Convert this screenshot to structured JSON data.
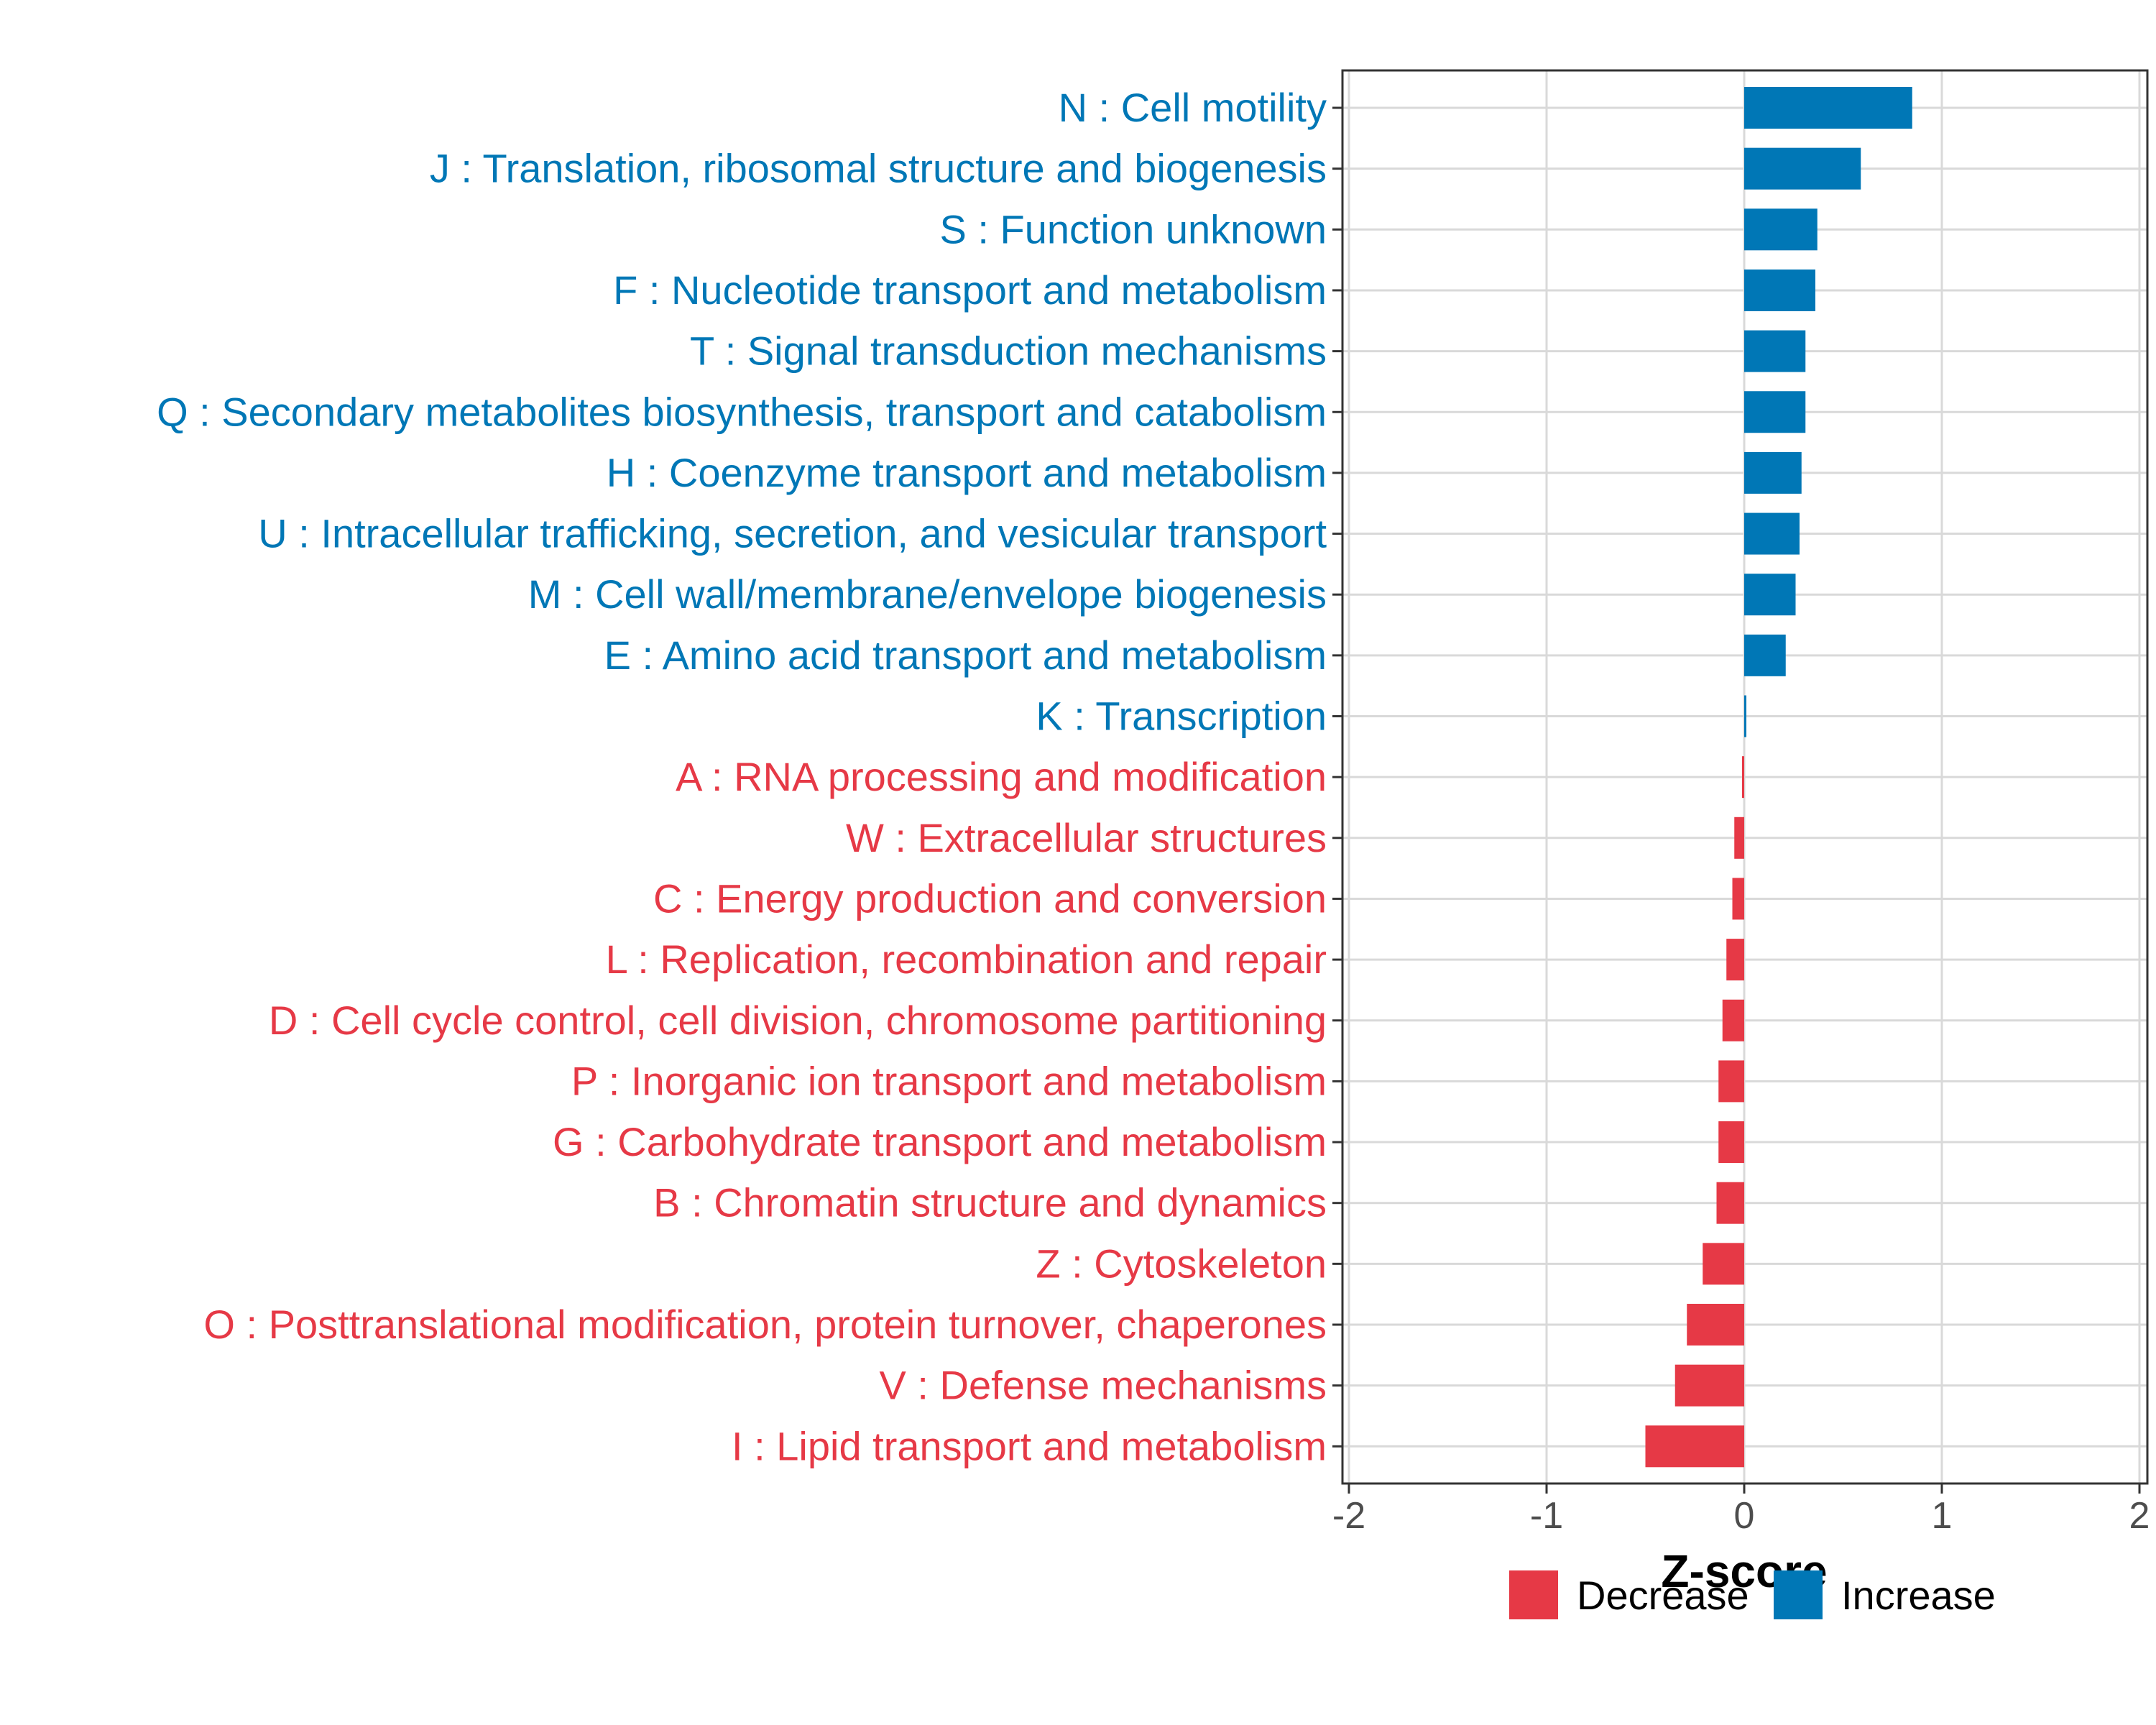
{
  "chart_data": {
    "type": "bar",
    "orientation": "horizontal",
    "xlabel": "Z-score",
    "xlim": [
      -2,
      2
    ],
    "xticks": [
      -2,
      -1,
      0,
      1,
      2
    ],
    "xtick_labels": [
      "-2",
      "-1",
      "0",
      "1",
      "2"
    ],
    "grid": true,
    "legend_position": "bottom",
    "legend": [
      {
        "name": "Decrease",
        "color": "#E63946"
      },
      {
        "name": "Increase",
        "color": "#0077B6"
      }
    ],
    "categories": [
      "N : Cell motility",
      "J : Translation, ribosomal structure and biogenesis",
      "S : Function unknown",
      "F : Nucleotide transport and metabolism",
      "T : Signal transduction mechanisms",
      "Q : Secondary metabolites biosynthesis, transport and catabolism",
      "H : Coenzyme transport and metabolism",
      "U : Intracellular trafficking, secretion, and vesicular transport",
      "M : Cell wall/membrane/envelope biogenesis",
      "E : Amino acid transport and metabolism",
      "K : Transcription",
      "A : RNA processing and modification",
      "W : Extracellular structures",
      "C : Energy production and conversion",
      "L : Replication, recombination and repair",
      "D : Cell cycle control, cell division, chromosome partitioning",
      "P : Inorganic ion transport and metabolism",
      "G : Carbohydrate transport and metabolism",
      "B : Chromatin structure and dynamics",
      "Z : Cytoskeleton",
      "O : Posttranslational modification, protein turnover, chaperones",
      "V : Defense mechanisms",
      "I : Lipid transport and metabolism"
    ],
    "values": [
      0.85,
      0.59,
      0.37,
      0.36,
      0.31,
      0.31,
      0.29,
      0.28,
      0.26,
      0.21,
      0.01,
      -0.01,
      -0.05,
      -0.06,
      -0.09,
      -0.11,
      -0.13,
      -0.13,
      -0.14,
      -0.21,
      -0.29,
      -0.35,
      -0.5
    ],
    "direction": [
      "Increase",
      "Increase",
      "Increase",
      "Increase",
      "Increase",
      "Increase",
      "Increase",
      "Increase",
      "Increase",
      "Increase",
      "Increase",
      "Decrease",
      "Decrease",
      "Decrease",
      "Decrease",
      "Decrease",
      "Decrease",
      "Decrease",
      "Decrease",
      "Decrease",
      "Decrease",
      "Decrease",
      "Decrease"
    ]
  }
}
